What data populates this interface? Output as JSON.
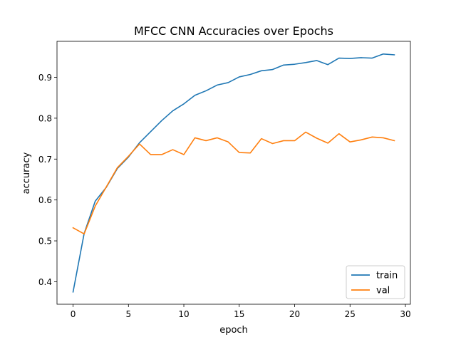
{
  "chart_data": {
    "type": "line",
    "title": "MFCC CNN Accuracies over Epochs",
    "xlabel": "epoch",
    "ylabel": "accuracy",
    "xlim": [
      -1.45,
      30.45
    ],
    "ylim": [
      0.345,
      0.988
    ],
    "xticks": [
      0,
      5,
      10,
      15,
      20,
      25,
      30
    ],
    "yticks": [
      0.4,
      0.5,
      0.6,
      0.7,
      0.8,
      0.9
    ],
    "xtick_labels": [
      "0",
      "5",
      "10",
      "15",
      "20",
      "25",
      "30"
    ],
    "ytick_labels": [
      "0.4",
      "0.5",
      "0.6",
      "0.7",
      "0.8",
      "0.9"
    ],
    "grid": false,
    "legend_position": "lower right",
    "x": [
      0,
      1,
      2,
      3,
      4,
      5,
      6,
      7,
      8,
      9,
      10,
      11,
      12,
      13,
      14,
      15,
      16,
      17,
      18,
      19,
      20,
      21,
      22,
      23,
      24,
      25,
      26,
      27,
      28,
      29
    ],
    "series": [
      {
        "name": "train",
        "color": "#1f77b4",
        "values": [
          0.375,
          0.518,
          0.597,
          0.631,
          0.677,
          0.705,
          0.74,
          0.767,
          0.794,
          0.818,
          0.835,
          0.856,
          0.867,
          0.881,
          0.887,
          0.901,
          0.907,
          0.916,
          0.919,
          0.93,
          0.932,
          0.936,
          0.941,
          0.931,
          0.947,
          0.946,
          0.948,
          0.947,
          0.957,
          0.955
        ]
      },
      {
        "name": "val",
        "color": "#ff7f0e",
        "values": [
          0.532,
          0.517,
          0.585,
          0.632,
          0.679,
          0.707,
          0.737,
          0.711,
          0.711,
          0.723,
          0.711,
          0.752,
          0.745,
          0.752,
          0.742,
          0.716,
          0.715,
          0.75,
          0.738,
          0.745,
          0.745,
          0.766,
          0.751,
          0.739,
          0.762,
          0.742,
          0.747,
          0.754,
          0.752,
          0.745
        ]
      }
    ]
  }
}
